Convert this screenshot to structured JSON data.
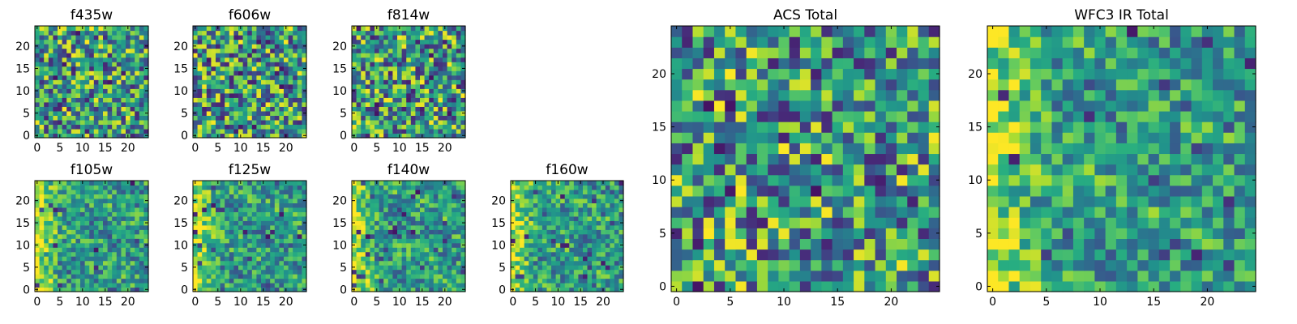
{
  "chart_data": [
    {
      "type": "heatmap",
      "title": "f435w",
      "xlabel": "",
      "ylabel": "",
      "xlim": [
        0,
        24
      ],
      "ylim": [
        0,
        24
      ],
      "xticks": [
        0,
        5,
        10,
        15,
        20
      ],
      "yticks": [
        0,
        5,
        10,
        15,
        20
      ],
      "colormap": "viridis"
    },
    {
      "type": "heatmap",
      "title": "f606w",
      "xlabel": "",
      "ylabel": "",
      "xlim": [
        0,
        24
      ],
      "ylim": [
        0,
        24
      ],
      "xticks": [
        0,
        5,
        10,
        15,
        20
      ],
      "yticks": [
        0,
        5,
        10,
        15,
        20
      ],
      "colormap": "viridis"
    },
    {
      "type": "heatmap",
      "title": "f814w",
      "xlabel": "",
      "ylabel": "",
      "xlim": [
        0,
        24
      ],
      "ylim": [
        0,
        24
      ],
      "xticks": [
        0,
        5,
        10,
        15,
        20
      ],
      "yticks": [
        0,
        5,
        10,
        15,
        20
      ],
      "colormap": "viridis"
    },
    {
      "type": "heatmap",
      "title": "f105w",
      "xlabel": "",
      "ylabel": "",
      "xlim": [
        0,
        24
      ],
      "ylim": [
        0,
        24
      ],
      "xticks": [
        0,
        5,
        10,
        15,
        20
      ],
      "yticks": [
        0,
        5,
        10,
        15,
        20
      ],
      "colormap": "viridis"
    },
    {
      "type": "heatmap",
      "title": "f125w",
      "xlabel": "",
      "ylabel": "",
      "xlim": [
        0,
        24
      ],
      "ylim": [
        0,
        24
      ],
      "xticks": [
        0,
        5,
        10,
        15,
        20
      ],
      "yticks": [
        0,
        5,
        10,
        15,
        20
      ],
      "colormap": "viridis"
    },
    {
      "type": "heatmap",
      "title": "f140w",
      "xlabel": "",
      "ylabel": "",
      "xlim": [
        0,
        24
      ],
      "ylim": [
        0,
        24
      ],
      "xticks": [
        0,
        5,
        10,
        15,
        20
      ],
      "yticks": [
        0,
        5,
        10,
        15,
        20
      ],
      "colormap": "viridis"
    },
    {
      "type": "heatmap",
      "title": "f160w",
      "xlabel": "",
      "ylabel": "",
      "xlim": [
        0,
        24
      ],
      "ylim": [
        0,
        24
      ],
      "xticks": [
        0,
        5,
        10,
        15,
        20
      ],
      "yticks": [
        0,
        5,
        10,
        15,
        20
      ],
      "colormap": "viridis"
    },
    {
      "type": "heatmap",
      "title": "ACS Total",
      "xlabel": "",
      "ylabel": "",
      "xlim": [
        0,
        24
      ],
      "ylim": [
        0,
        24
      ],
      "xticks": [
        0,
        5,
        10,
        15,
        20
      ],
      "yticks": [
        0,
        5,
        10,
        15,
        20
      ],
      "colormap": "viridis"
    },
    {
      "type": "heatmap",
      "title": "WFC3 IR Total",
      "xlabel": "",
      "ylabel": "",
      "xlim": [
        0,
        24
      ],
      "ylim": [
        0,
        24
      ],
      "xticks": [
        0,
        5,
        10,
        15,
        20
      ],
      "yticks": [
        0,
        5,
        10,
        15,
        20
      ],
      "colormap": "viridis"
    }
  ],
  "colors": {
    "viridis_low": "#440154",
    "viridis_mid_low": "#3b528b",
    "viridis_mid": "#21918c",
    "viridis_mid_high": "#5ec962",
    "viridis_high": "#fde725",
    "axis": "#000000",
    "background": "#ffffff"
  }
}
